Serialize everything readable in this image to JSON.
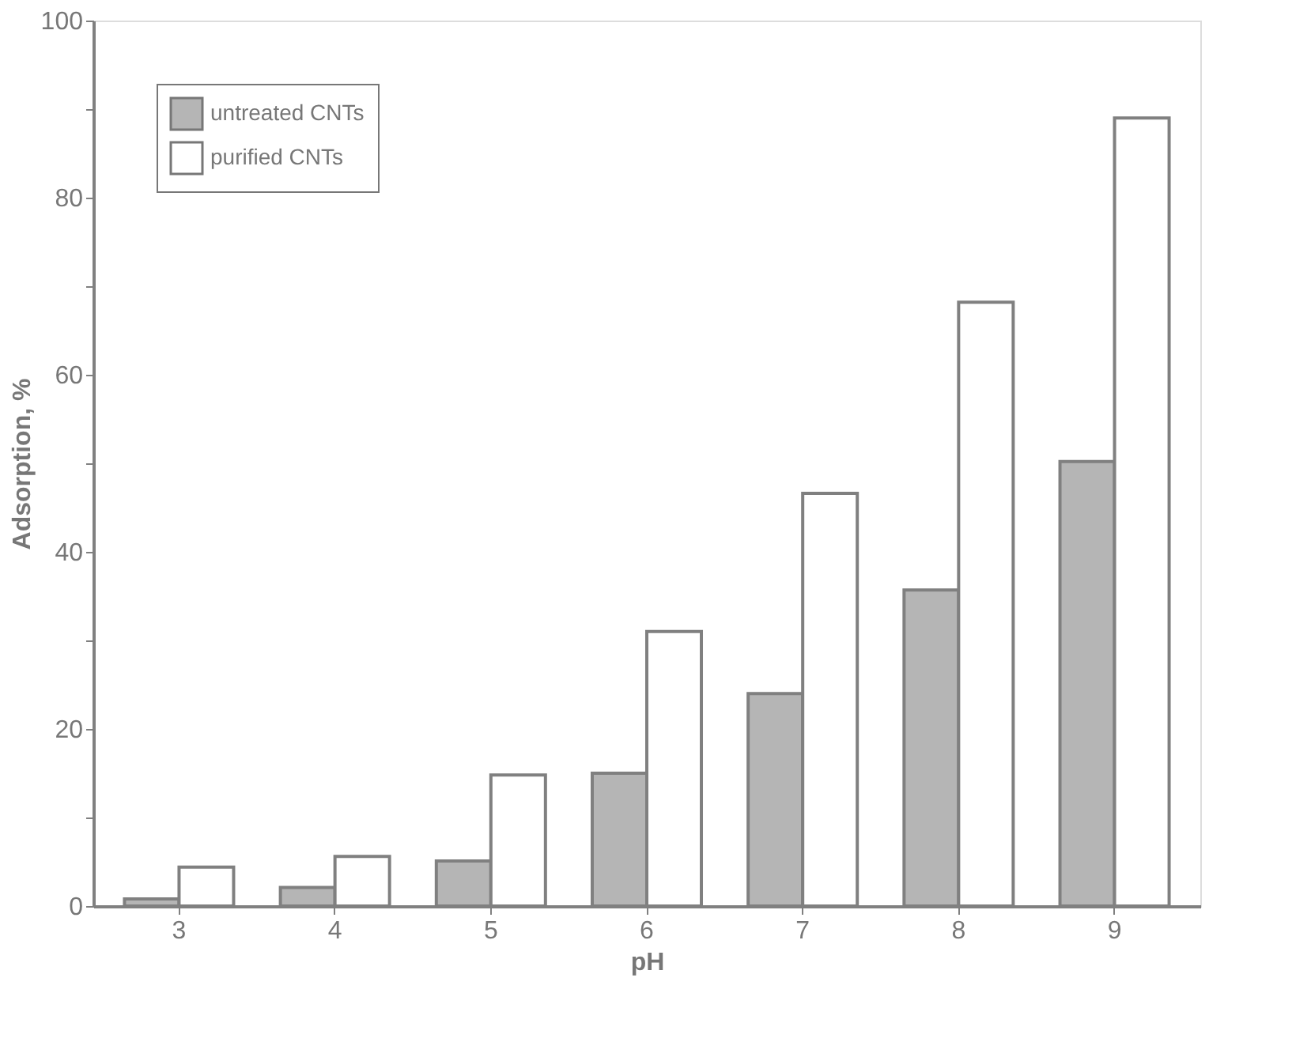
{
  "chart_data": {
    "type": "bar",
    "xlabel": "pH",
    "ylabel": "Adsorption, %",
    "categories": [
      "3",
      "4",
      "5",
      "6",
      "7",
      "8",
      "9"
    ],
    "series": [
      {
        "name": "untreated CNTs",
        "color": "#b5b5b5",
        "values": [
          0.8,
          2.1,
          5.1,
          15,
          24,
          35.7,
          50.2
        ]
      },
      {
        "name": "purified CNTs",
        "color": "#ffffff",
        "values": [
          4.4,
          5.6,
          14.8,
          31,
          46.6,
          68.2,
          89
        ]
      }
    ],
    "ylim": [
      0,
      100
    ],
    "yticks": [
      0,
      {
        "value": 10,
        "label": null
      },
      20,
      {
        "value": 30,
        "label": null
      },
      40,
      {
        "value": 50,
        "label": null
      },
      60,
      {
        "value": 70,
        "label": null
      },
      80,
      {
        "value": 90,
        "label": null
      },
      100
    ],
    "grid": false,
    "legend": "top left"
  }
}
